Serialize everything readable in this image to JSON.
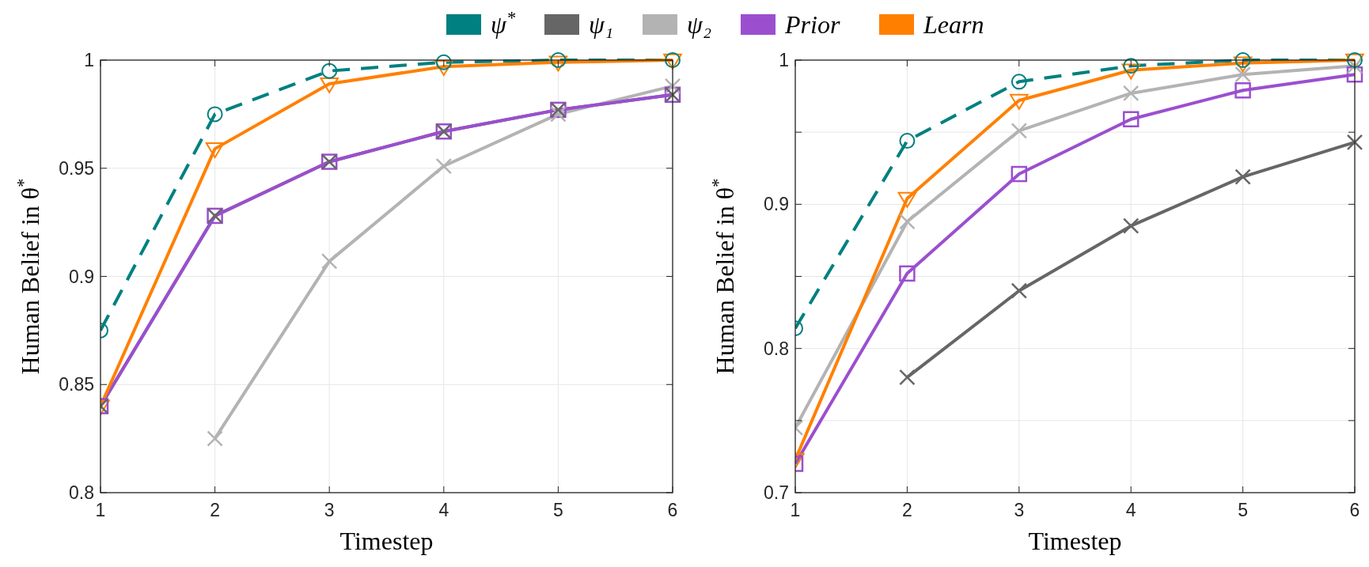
{
  "chart_data": [
    {
      "type": "line",
      "xlabel": "Timestep",
      "ylabel": "Human Belief in θ$^{*}$",
      "x": [
        1,
        2,
        3,
        4,
        5,
        6
      ],
      "xlim": [
        1,
        6
      ],
      "xticks": [
        1,
        2,
        3,
        4,
        5,
        6
      ],
      "ylim": [
        0.8,
        1
      ],
      "yticks": [
        0.8,
        0.85,
        0.9,
        0.95,
        1
      ],
      "grid": true,
      "legend": "top",
      "series": [
        {
          "name": "ψ$^{*}$",
          "color": "#008080",
          "marker": "circle",
          "line_style": "dashed",
          "values": [
            0.875,
            0.975,
            0.995,
            0.999,
            1.0,
            1.0
          ]
        },
        {
          "name": "ψ₁",
          "color": "#666666",
          "marker": "cross",
          "values": [
            0.84,
            0.928,
            0.953,
            0.967,
            0.977,
            0.984
          ]
        },
        {
          "name": "ψ₂",
          "color": "#b3b3b3",
          "marker": "cross",
          "values": [
            null,
            0.825,
            0.907,
            0.951,
            0.975,
            0.988
          ]
        },
        {
          "name": "Prior",
          "color": "#9b4fcf",
          "marker": "square",
          "values": [
            0.84,
            0.928,
            0.953,
            0.967,
            0.977,
            0.984
          ]
        },
        {
          "name": "Learn",
          "color": "#ff8000",
          "marker": "triangle",
          "values": [
            0.84,
            0.959,
            0.989,
            0.997,
            0.999,
            1.0
          ]
        }
      ]
    },
    {
      "type": "line",
      "xlabel": "Timestep",
      "ylabel": "Human Belief in θ$^{*}$",
      "x": [
        1,
        2,
        3,
        4,
        5,
        6
      ],
      "xlim": [
        1,
        6
      ],
      "xticks": [
        1,
        2,
        3,
        4,
        5,
        6
      ],
      "ylim": [
        0.7,
        1
      ],
      "yticks": [
        0.7,
        {
          "value": 0.75,
          "label": null
        },
        0.8,
        {
          "value": 0.85,
          "label": null
        },
        0.9,
        {
          "value": 0.95,
          "label": null
        },
        1
      ],
      "grid": true,
      "series": [
        {
          "color": "#008080",
          "marker": "circle",
          "line_style": "dashed",
          "values": [
            0.814,
            0.944,
            0.985,
            0.996,
            1.0,
            1.0
          ]
        },
        {
          "color": "#666666",
          "marker": "cross",
          "values": [
            null,
            0.78,
            0.84,
            0.885,
            0.919,
            0.943
          ]
        },
        {
          "color": "#b3b3b3",
          "marker": "cross",
          "values": [
            0.745,
            0.888,
            0.951,
            0.977,
            0.99,
            0.996
          ]
        },
        {
          "color": "#9b4fcf",
          "marker": "square",
          "values": [
            0.72,
            0.852,
            0.921,
            0.959,
            0.979,
            0.99
          ]
        },
        {
          "color": "#ff8000",
          "marker": "triangle",
          "values": [
            0.723,
            0.904,
            0.972,
            0.993,
            0.998,
            1.0
          ]
        }
      ]
    }
  ]
}
